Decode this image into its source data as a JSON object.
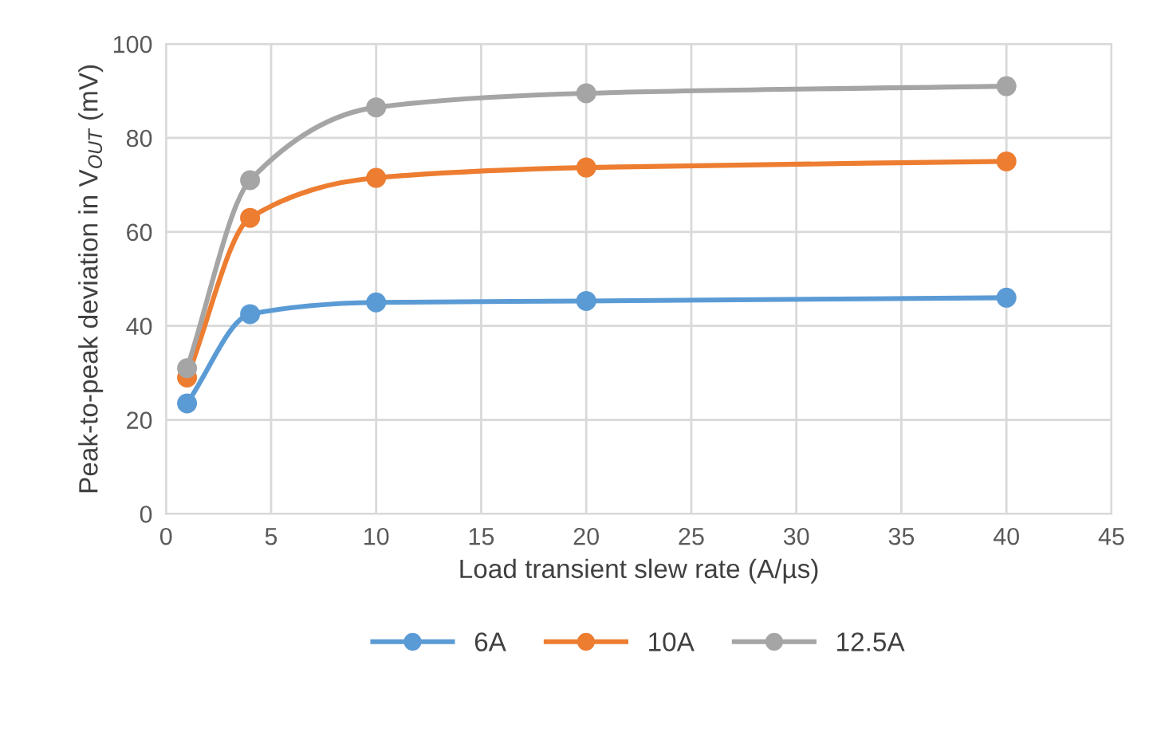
{
  "chart_data": {
    "type": "line",
    "xlabel": "Load transient slew rate (A/µs)",
    "ylabel": "Peak-to-peak deviation in V$_{OUT}$ (mV)",
    "x": [
      1,
      4,
      10,
      20,
      40
    ],
    "series": [
      {
        "name": "6A",
        "color": "#5b9bd5",
        "values": [
          23.5,
          42.5,
          45,
          45.3,
          46
        ]
      },
      {
        "name": "10A",
        "color": "#ed7d31",
        "values": [
          29,
          63,
          71.5,
          73.7,
          75
        ]
      },
      {
        "name": "12.5A",
        "color": "#a5a5a5",
        "values": [
          31,
          71,
          86.5,
          89.5,
          91
        ]
      }
    ],
    "xlim": [
      0,
      45
    ],
    "xticks": [
      0,
      5,
      10,
      15,
      20,
      25,
      30,
      35,
      40,
      45
    ],
    "ylim": [
      0,
      100
    ],
    "yticks": [
      0,
      20,
      40,
      60,
      80,
      100
    ],
    "grid": true,
    "legend": "bottom",
    "marker": "circle",
    "line_style": "solid"
  }
}
